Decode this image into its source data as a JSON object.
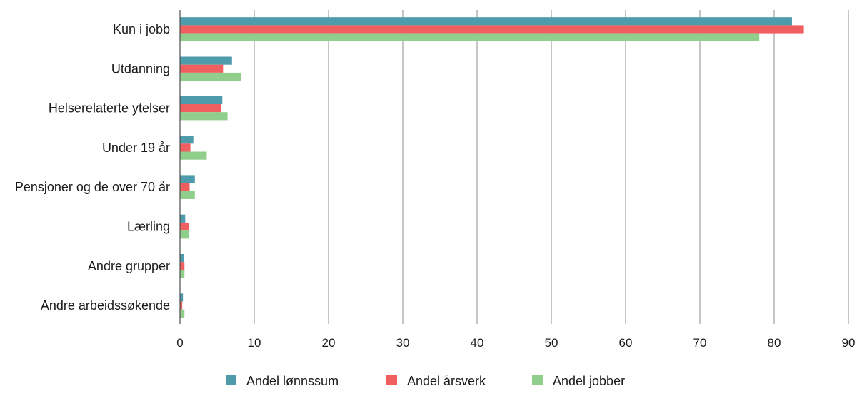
{
  "colors": {
    "series_1": "#4e9bab",
    "series_2": "#ef5f60",
    "series_3": "#8fce8b"
  },
  "chart_data": {
    "type": "bar",
    "orientation": "horizontal",
    "categories": [
      "Kun i jobb",
      "Utdanning",
      "Helserelaterte ytelser",
      "Under 19 år",
      "Pensjoner og de over 70 år",
      "Lærling",
      "Andre grupper",
      "Andre arbeidssøkende"
    ],
    "series": [
      {
        "name": "Andel lønnssum",
        "values": [
          82.4,
          7.0,
          5.7,
          1.8,
          2.0,
          0.7,
          0.5,
          0.4
        ]
      },
      {
        "name": "Andel årsverk",
        "values": [
          84.0,
          5.8,
          5.5,
          1.4,
          1.3,
          1.2,
          0.6,
          0.3
        ]
      },
      {
        "name": "Andel jobber",
        "values": [
          78.0,
          8.2,
          6.4,
          3.6,
          2.0,
          1.2,
          0.6,
          0.6
        ]
      }
    ],
    "xlim": [
      0,
      90
    ],
    "xticks": [
      "0",
      "10",
      "20",
      "30",
      "40",
      "50",
      "60",
      "70",
      "80",
      "90"
    ],
    "grid": "vertical",
    "legend_position": "bottom"
  }
}
